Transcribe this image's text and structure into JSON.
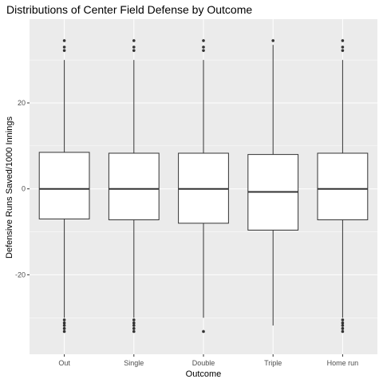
{
  "chart_data": {
    "type": "boxplot",
    "title": "Distributions of Center Field Defense by Outcome",
    "xlabel": "Outcome",
    "ylabel": "Defensive Runs Saved/1000 Innings",
    "categories": [
      "Out",
      "Single",
      "Double",
      "Triple",
      "Home run"
    ],
    "boxes": [
      {
        "q1": -7,
        "median": 0,
        "q3": 8.5,
        "whisker_low": -30,
        "whisker_high": 30,
        "outliers": [
          -30.5,
          -31.2,
          -31.8,
          -32.5,
          -33.2,
          32.2,
          33.0,
          34.5
        ]
      },
      {
        "q1": -7.2,
        "median": 0,
        "q3": 8.3,
        "whisker_low": -30,
        "whisker_high": 30,
        "outliers": [
          -30.5,
          -31.2,
          -31.8,
          -32.5,
          -33.2,
          32.2,
          33.0,
          34.5
        ]
      },
      {
        "q1": -8,
        "median": 0,
        "q3": 8.3,
        "whisker_low": -30,
        "whisker_high": 30,
        "outliers": [
          -33.2,
          32.2,
          33.0,
          34.5
        ]
      },
      {
        "q1": -9.6,
        "median": -0.7,
        "q3": 8.0,
        "whisker_low": -31.8,
        "whisker_high": 33.5,
        "outliers": [
          34.5
        ]
      },
      {
        "q1": -7.2,
        "median": 0,
        "q3": 8.3,
        "whisker_low": -30,
        "whisker_high": 30,
        "outliers": [
          -30.5,
          -31.2,
          -31.8,
          -32.5,
          -33.2,
          32.2,
          33.0,
          34.5
        ]
      }
    ],
    "ylim": [
      -38.5,
      39.5
    ],
    "yticks": [
      -20,
      0,
      20
    ],
    "grid": true,
    "colors": {
      "panel": "#ebebeb",
      "grid_major": "#ffffff",
      "box_fill": "#ffffff",
      "box_line": "#333333",
      "tick_label": "#4d4d4d"
    }
  }
}
